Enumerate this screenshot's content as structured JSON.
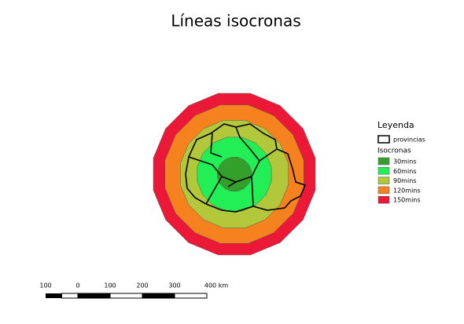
{
  "title": "Líneas isocronas",
  "legend": {
    "title": "Leyenda",
    "layer": "provincias",
    "group": "Isocronas",
    "items": [
      {
        "label": "30mins",
        "color": "#33a02c"
      },
      {
        "label": "60mins",
        "color": "#22ee55"
      },
      {
        "label": "90mins",
        "color": "#b2c73a"
      },
      {
        "label": "120mins",
        "color": "#f5821f"
      },
      {
        "label": "150mins",
        "color": "#ec1838"
      }
    ]
  },
  "scale_bar": {
    "labels": [
      "100",
      "0",
      "100",
      "200",
      "300",
      "400 km"
    ]
  }
}
